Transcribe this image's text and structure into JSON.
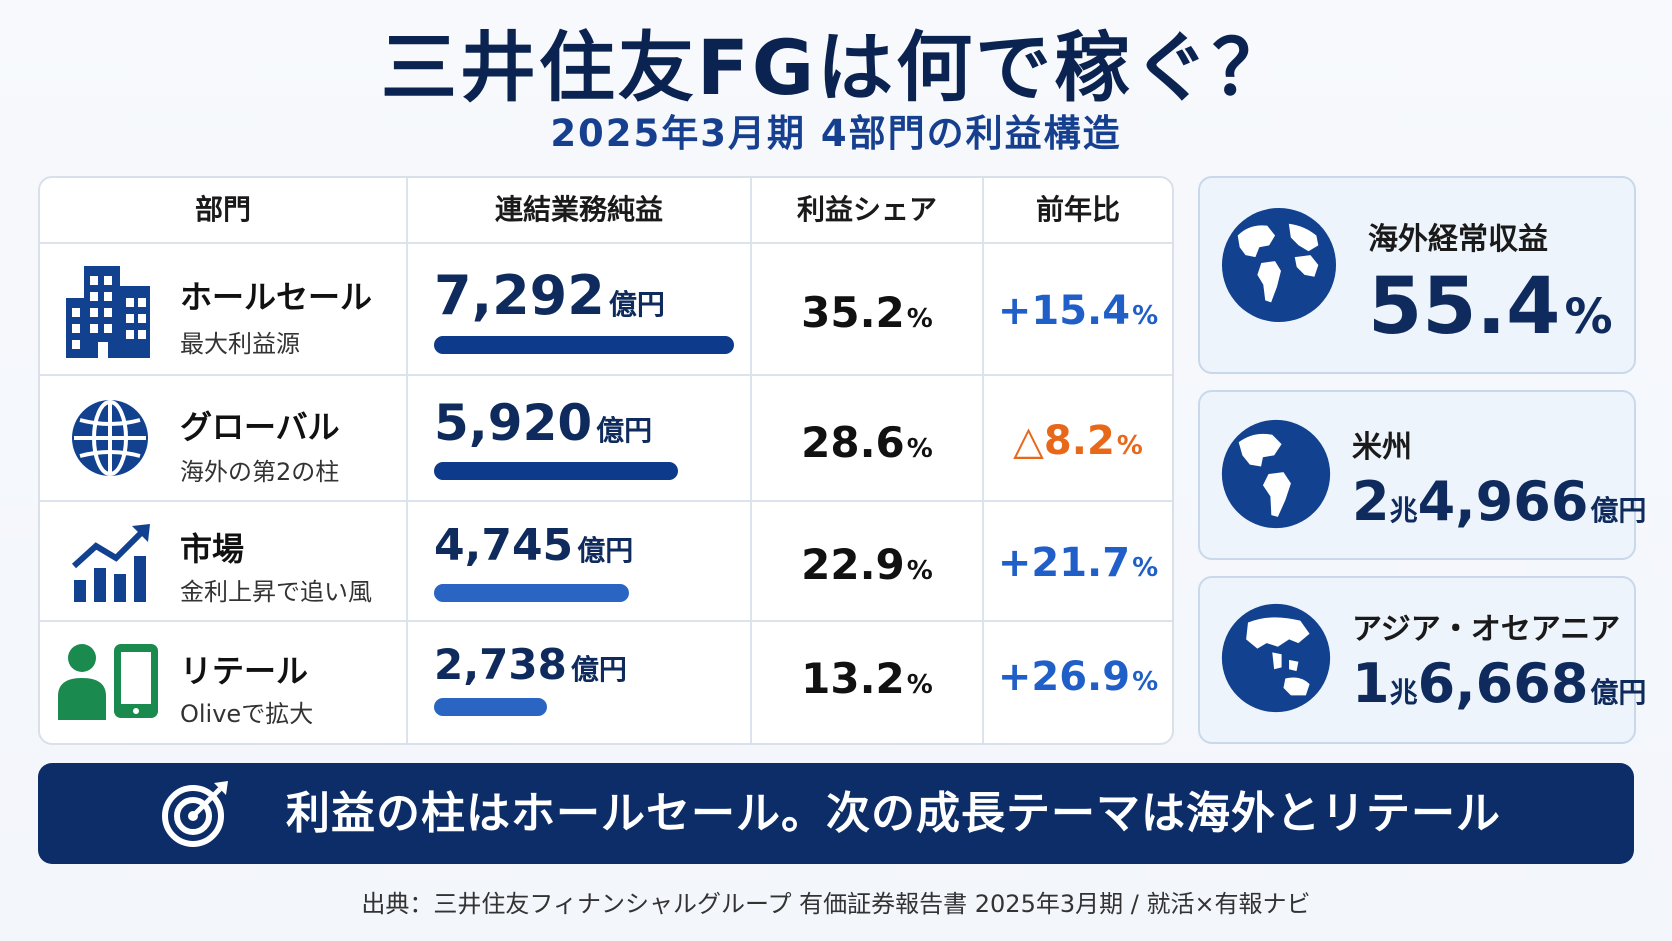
{
  "title": "三井住友FGは何で稼ぐ？",
  "subtitle": "2025年3月期 4部門の利益構造",
  "table": {
    "headers": [
      "部門",
      "連結業務純益",
      "利益シェア",
      "前年比"
    ],
    "amount_unit": "億円",
    "percent_sign": "%"
  },
  "chart_data": {
    "type": "table",
    "categories": [
      "ホールセール",
      "グローバル",
      "市場",
      "リテール"
    ],
    "rows": [
      {
        "segment": "ホールセール",
        "desc": "最大利益源",
        "amount": "7,292",
        "amount_value": 7292,
        "share": "35.2",
        "yoy": "+15.4",
        "icon": "office-building-icon"
      },
      {
        "segment": "グローバル",
        "desc": "海外の第2の柱",
        "amount": "5,920",
        "amount_value": 5920,
        "share": "28.6",
        "yoy": "△8.2",
        "icon": "globe-grid-icon"
      },
      {
        "segment": "市場",
        "desc": "金利上昇で追い風",
        "amount": "4,745",
        "amount_value": 4745,
        "share": "22.9",
        "yoy": "+21.7",
        "icon": "rising-chart-icon"
      },
      {
        "segment": "リテール",
        "desc": "Oliveで拡大",
        "amount": "2,738",
        "amount_value": 2738,
        "share": "13.2",
        "yoy": "+26.9",
        "icon": "person-smartphone-icon"
      }
    ],
    "bar_max": 7292
  },
  "colors": {
    "navy": "#0b2350",
    "bar_dark": "#0d3a8a",
    "bar_light": "#2a65c4",
    "positive": "#1f5fc7",
    "negative": "#e8681a",
    "icon_blue": "#11418f",
    "icon_green": "#1a8a4f"
  },
  "side": {
    "overseas": {
      "label": "海外経常収益",
      "value": "55.4",
      "sign": "%"
    },
    "americas": {
      "label": "米州",
      "cho": "2",
      "cho_unit": "兆",
      "oku": "4,966",
      "oku_unit": "億円"
    },
    "asia": {
      "label": "アジア・オセアニア",
      "cho": "1",
      "cho_unit": "兆",
      "oku": "6,668",
      "oku_unit": "億円"
    }
  },
  "banner": {
    "text": "利益の柱はホールセール。次の成長テーマは海外とリテール",
    "icon": "target-icon"
  },
  "source": "出典：三井住友フィナンシャルグループ 有価証券報告書 2025年3月期 / 就活×有報ナビ"
}
